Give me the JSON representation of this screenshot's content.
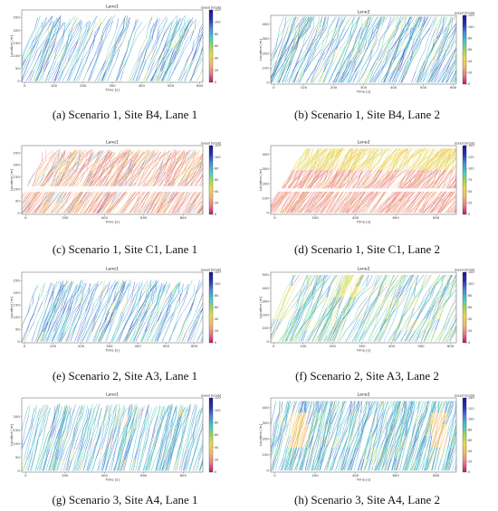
{
  "figure": {
    "colorbar": {
      "label": "speed [km/h]",
      "colors": [
        "#c2185b",
        "#e87a8a",
        "#f0b86a",
        "#ecd84a",
        "#9ad85a",
        "#3fc9cf",
        "#4e86d8",
        "#2a2fb8",
        "#1a1a8a"
      ]
    },
    "xlabel": "Time [s]",
    "ylabel": "Location [m]"
  },
  "chart_data": [
    {
      "type": "heatmap",
      "id": "a",
      "title": "Lane1",
      "caption": "(a) Scenario 1, Site B4, Lane 1",
      "xticks": [
        0,
        100,
        200,
        300,
        400,
        500,
        600
      ],
      "xlim": [
        -10,
        610
      ],
      "yticks": [
        0,
        50,
        100,
        150,
        200,
        250
      ],
      "ylim": [
        -5,
        280
      ],
      "cbticks": [
        0,
        20,
        40,
        60,
        80,
        100,
        120
      ],
      "cbmax": 120,
      "y_start": 0,
      "y_end": 260,
      "y_end_jitter": 30,
      "n_traj": 110,
      "slope_range": [
        2,
        3.5
      ],
      "speed_dominant": "high",
      "gaps": [],
      "colorbar_label": "speed [km/h]"
    },
    {
      "type": "heatmap",
      "id": "b",
      "title": "Lane2",
      "caption": "(b) Scenario 1, Site B4, Lane 2",
      "xticks": [
        0,
        100,
        200,
        300,
        400,
        500,
        600
      ],
      "xlim": [
        -10,
        610
      ],
      "yticks": [
        0,
        100,
        200,
        300,
        400
      ],
      "ylim": [
        -10,
        460
      ],
      "cbticks": [
        0,
        20,
        40,
        60,
        80,
        100,
        120
      ],
      "cbmax": 120,
      "y_start": 0,
      "y_end": 450,
      "y_end_jitter": 0,
      "n_traj": 160,
      "slope_range": [
        3,
        6
      ],
      "speed_dominant": "mixed-high",
      "gaps": [],
      "colorbar_label": "speed [km/h]"
    },
    {
      "type": "heatmap",
      "id": "c",
      "title": "Lane1",
      "caption": "(c) Scenario 1, Site C1, Lane 1",
      "xticks": [
        0,
        200,
        400,
        600,
        800
      ],
      "xlim": [
        -20,
        900
      ],
      "yticks": [
        0,
        50,
        100,
        150,
        200,
        250
      ],
      "ylim": [
        -5,
        280
      ],
      "cbticks": [
        0,
        20,
        40,
        60,
        80,
        100,
        120
      ],
      "cbmax": 120,
      "y_start": 0,
      "y_end": 265,
      "y_end_jitter": 15,
      "n_traj": 230,
      "slope_range": [
        0.8,
        1.6
      ],
      "speed_dominant": "low",
      "gaps": [
        [
          88,
          112
        ]
      ],
      "colorbar_label": "speed [km/h]"
    },
    {
      "type": "heatmap",
      "id": "d",
      "title": "Lane2",
      "caption": "(d) Scenario 1, Site C1, Lane 2",
      "xticks": [
        0,
        200,
        400,
        600,
        800
      ],
      "xlim": [
        -20,
        900
      ],
      "yticks": [
        0,
        100,
        200,
        300,
        400
      ],
      "ylim": [
        -10,
        460
      ],
      "cbticks": [
        0,
        25,
        50,
        75,
        100,
        125,
        150
      ],
      "cbmax": 150,
      "y_start": 0,
      "y_end": 440,
      "y_end_jitter": 0,
      "n_traj": 260,
      "slope_range": [
        1.2,
        2.5
      ],
      "speed_dominant": "low-band",
      "gaps": [
        [
          145,
          168
        ]
      ],
      "colorbar_label": "speed [km/h]"
    },
    {
      "type": "heatmap",
      "id": "e",
      "title": "Lane1",
      "caption": "(e) Scenario 2, Site A3, Lane 1",
      "xticks": [
        0,
        100,
        200,
        300,
        400,
        500,
        600
      ],
      "xlim": [
        -10,
        630
      ],
      "yticks": [
        0,
        50,
        100,
        150,
        200,
        250
      ],
      "ylim": [
        -5,
        285
      ],
      "cbticks": [
        0,
        20,
        40,
        60,
        80,
        100,
        120
      ],
      "cbmax": 120,
      "y_start": 0,
      "y_end": 255,
      "y_end_jitter": 25,
      "n_traj": 120,
      "slope_range": [
        2,
        3.5
      ],
      "speed_dominant": "high",
      "gaps": [],
      "colorbar_label": "speed [km/h]"
    },
    {
      "type": "heatmap",
      "id": "f",
      "title": "Lane2",
      "caption": "(f) Scenario 2, Site A3, Lane 2",
      "xticks": [
        0,
        100,
        200,
        300,
        400,
        500,
        600
      ],
      "xlim": [
        -10,
        620
      ],
      "yticks": [
        0,
        100,
        200,
        300,
        400,
        500
      ],
      "ylim": [
        -10,
        520
      ],
      "cbticks": [
        0,
        20,
        40,
        60,
        80,
        100,
        120
      ],
      "cbmax": 120,
      "y_start": 0,
      "y_end": 500,
      "y_end_jitter": 0,
      "n_traj": 140,
      "slope_range": [
        3,
        6
      ],
      "speed_dominant": "mixed",
      "gaps": [],
      "colorbar_label": "speed [km/h]"
    },
    {
      "type": "heatmap",
      "id": "g",
      "title": "Lane1",
      "caption": "(g) Scenario 3, Site A4, Lane 1",
      "xticks": [
        0,
        200,
        400,
        600,
        800
      ],
      "xlim": [
        -20,
        900
      ],
      "yticks": [
        0,
        50,
        100,
        150,
        200
      ],
      "ylim": [
        -5,
        270
      ],
      "cbticks": [
        0,
        20,
        40,
        60,
        80,
        100,
        120
      ],
      "cbmax": 120,
      "y_start": 0,
      "y_end": 250,
      "y_end_jitter": 20,
      "n_traj": 150,
      "slope_range": [
        2,
        3.5
      ],
      "speed_dominant": "high-sparse",
      "gaps": [],
      "colorbar_label": "speed [km/h]"
    },
    {
      "type": "heatmap",
      "id": "h",
      "title": "Lane2",
      "caption": "(h) Scenario 3, Site A4, Lane 2",
      "xticks": [
        0,
        200,
        400,
        600,
        800
      ],
      "xlim": [
        -20,
        900
      ],
      "yticks": [
        0,
        100,
        200,
        300,
        400
      ],
      "ylim": [
        -10,
        460
      ],
      "cbticks": [
        0,
        20,
        40,
        60,
        80,
        100,
        120,
        140
      ],
      "cbmax": 140,
      "y_start": 0,
      "y_end": 440,
      "y_end_jitter": 0,
      "n_traj": 210,
      "slope_range": [
        3,
        6
      ],
      "speed_dominant": "mixed-hotspot",
      "gaps": [],
      "colorbar_label": "speed [km/h]"
    }
  ]
}
